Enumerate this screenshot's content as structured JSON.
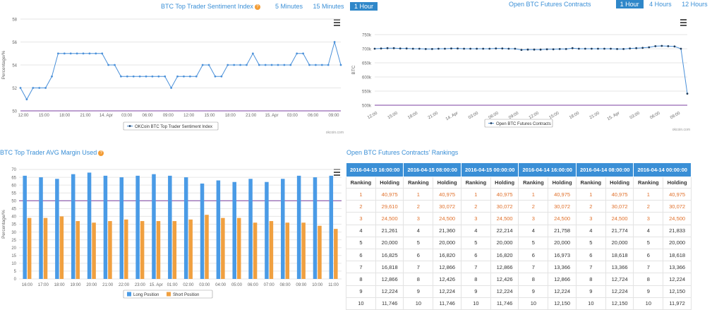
{
  "sentiment": {
    "title": "BTC Top Trader Sentiment Index",
    "help": "?",
    "buttons": [
      "5 Minutes",
      "15 Minutes",
      "1 Hour"
    ],
    "active_button": 2,
    "watermark": "okcoin.com"
  },
  "futures": {
    "title": "Open BTC Futures Contracts",
    "buttons": [
      "1 Hour",
      "4 Hours",
      "12 Hours"
    ],
    "active_button": 0,
    "watermark": "okcoin.com"
  },
  "margin": {
    "title": "BTC Top Trader AVG Margin Used",
    "help": "?"
  },
  "rankings": {
    "title": "Open BTC Futures Contracts' Rankings",
    "dates": [
      "2016-04-15 16:00:00",
      "2016-04-15 08:00:00",
      "2016-04-15 00:00:00",
      "2016-04-14 16:00:00",
      "2016-04-14 08:00:00",
      "2016-04-14 00:00:00"
    ],
    "col_ranking": "Ranking",
    "col_holding": "Holding",
    "rows": [
      [
        "1",
        "40,975",
        "1",
        "40,975",
        "1",
        "40,975",
        "1",
        "40,975",
        "1",
        "40,975",
        "1",
        "40,975"
      ],
      [
        "2",
        "29,610",
        "2",
        "30,072",
        "2",
        "30,072",
        "2",
        "30,072",
        "2",
        "30,072",
        "2",
        "30,072"
      ],
      [
        "3",
        "24,500",
        "3",
        "24,500",
        "3",
        "24,500",
        "3",
        "24,500",
        "3",
        "24,500",
        "3",
        "24,500"
      ],
      [
        "4",
        "21,261",
        "4",
        "21,360",
        "4",
        "22,214",
        "4",
        "21,758",
        "4",
        "21,774",
        "4",
        "21,833"
      ],
      [
        "5",
        "20,000",
        "5",
        "20,000",
        "5",
        "20,000",
        "5",
        "20,000",
        "5",
        "20,000",
        "5",
        "20,000"
      ],
      [
        "6",
        "16,825",
        "6",
        "16,820",
        "6",
        "16,820",
        "6",
        "16,973",
        "6",
        "18,618",
        "6",
        "18,618"
      ],
      [
        "7",
        "16,818",
        "7",
        "12,866",
        "7",
        "12,866",
        "7",
        "13,366",
        "7",
        "13,366",
        "7",
        "13,366"
      ],
      [
        "8",
        "12,866",
        "8",
        "12,426",
        "8",
        "12,426",
        "8",
        "12,866",
        "8",
        "12,724",
        "8",
        "12,224"
      ],
      [
        "9",
        "12,224",
        "9",
        "12,224",
        "9",
        "12,224",
        "9",
        "12,224",
        "9",
        "12,224",
        "9",
        "12,150"
      ],
      [
        "10",
        "11,746",
        "10",
        "11,746",
        "10",
        "11,746",
        "10",
        "12,150",
        "10",
        "12,150",
        "10",
        "11,972"
      ]
    ],
    "highlight_rows": 3
  },
  "chart_data": [
    {
      "type": "line",
      "title": "BTC Top Trader Sentiment Index",
      "xlabel": "",
      "ylabel": "Percentage/%",
      "ylim": [
        50,
        58
      ],
      "yticks": [
        "50",
        "52",
        "54",
        "56",
        "58"
      ],
      "xticks": [
        "12:00",
        "15:00",
        "18:00",
        "21:00",
        "14. Apr",
        "03:00",
        "06:00",
        "09:00",
        "12:00",
        "15:00",
        "18:00",
        "21:00",
        "15. Apr",
        "03:00",
        "06:00",
        "09:00"
      ],
      "legend": "OKCoin BTC Top Trader Sentiment Index",
      "series": [
        {
          "name": "OKCoin BTC Top Trader Sentiment Index",
          "values": [
            52,
            51,
            52,
            52,
            52,
            53,
            55,
            55,
            55,
            55,
            55,
            55,
            55,
            55,
            54,
            54,
            53,
            53,
            53,
            53,
            53,
            53,
            53,
            53,
            52,
            53,
            53,
            53,
            53,
            54,
            54,
            53,
            53,
            54,
            54,
            54,
            54,
            55,
            54,
            54,
            54,
            54,
            54,
            54,
            55,
            55,
            54,
            54,
            54,
            54,
            56,
            54
          ]
        }
      ]
    },
    {
      "type": "line",
      "title": "Open BTC Futures Contracts",
      "xlabel": "",
      "ylabel": "BTC",
      "ylim": [
        500000,
        750000
      ],
      "yticks": [
        "500k",
        "550k",
        "600k",
        "650k",
        "700k",
        "750k"
      ],
      "xticks": [
        "12:00",
        "15:00",
        "18:00",
        "21:00",
        "14. Apr",
        "03:00",
        "06:00",
        "09:00",
        "12:00",
        "15:00",
        "18:00",
        "21:00",
        "15. Apr",
        "03:00",
        "06:00",
        "09:00"
      ],
      "legend": "Open BTC Futures Contracts",
      "series": [
        {
          "name": "Open BTC Futures Contracts",
          "values": [
            700000,
            701000,
            702000,
            702000,
            701000,
            701000,
            700000,
            700000,
            699000,
            699000,
            700000,
            700000,
            701000,
            701000,
            700000,
            700000,
            700000,
            700000,
            700000,
            701000,
            701000,
            700000,
            700000,
            696000,
            697000,
            697000,
            697000,
            698000,
            698000,
            699000,
            699000,
            702000,
            700000,
            700000,
            700000,
            700000,
            700000,
            700000,
            699000,
            699000,
            701000,
            702000,
            703000,
            705000,
            709000,
            710000,
            709000,
            708000,
            700000,
            541000
          ]
        }
      ]
    },
    {
      "type": "bar",
      "title": "BTC Top Trader AVG Margin Used",
      "xlabel": "",
      "ylabel": "Percentage/%",
      "ylim": [
        0,
        70
      ],
      "yticks": [
        "0",
        "5",
        "10",
        "15",
        "20",
        "25",
        "30",
        "35",
        "40",
        "45",
        "50",
        "55",
        "60",
        "65",
        "70"
      ],
      "reference_line": 50,
      "categories": [
        "16:00",
        "17:00",
        "18:00",
        "19:00",
        "20:00",
        "21:00",
        "22:00",
        "23:00",
        "15. Apr",
        "01:00",
        "02:00",
        "03:00",
        "04:00",
        "05:00",
        "06:00",
        "07:00",
        "08:00",
        "09:00",
        "10:00",
        "11:00"
      ],
      "series": [
        {
          "name": "Long Position",
          "values": [
            66,
            65,
            64,
            67,
            68,
            66,
            65,
            66,
            67,
            66,
            65,
            61,
            63,
            62,
            64,
            62,
            64,
            66,
            65,
            66
          ]
        },
        {
          "name": "Short Position",
          "values": [
            39,
            39,
            40,
            37,
            36,
            37,
            38,
            37,
            37,
            37,
            38,
            41,
            39,
            39,
            36,
            37,
            36,
            36,
            34,
            32
          ]
        }
      ],
      "legend": [
        "Long Position",
        "Short Position"
      ]
    }
  ],
  "colors": {
    "accent": "#3a8fd6",
    "line": "#4a90d9",
    "long": "#4a9be6",
    "short": "#f0a040",
    "ref_line": "#7b3fa0",
    "highlight_text": "#e0702a"
  }
}
